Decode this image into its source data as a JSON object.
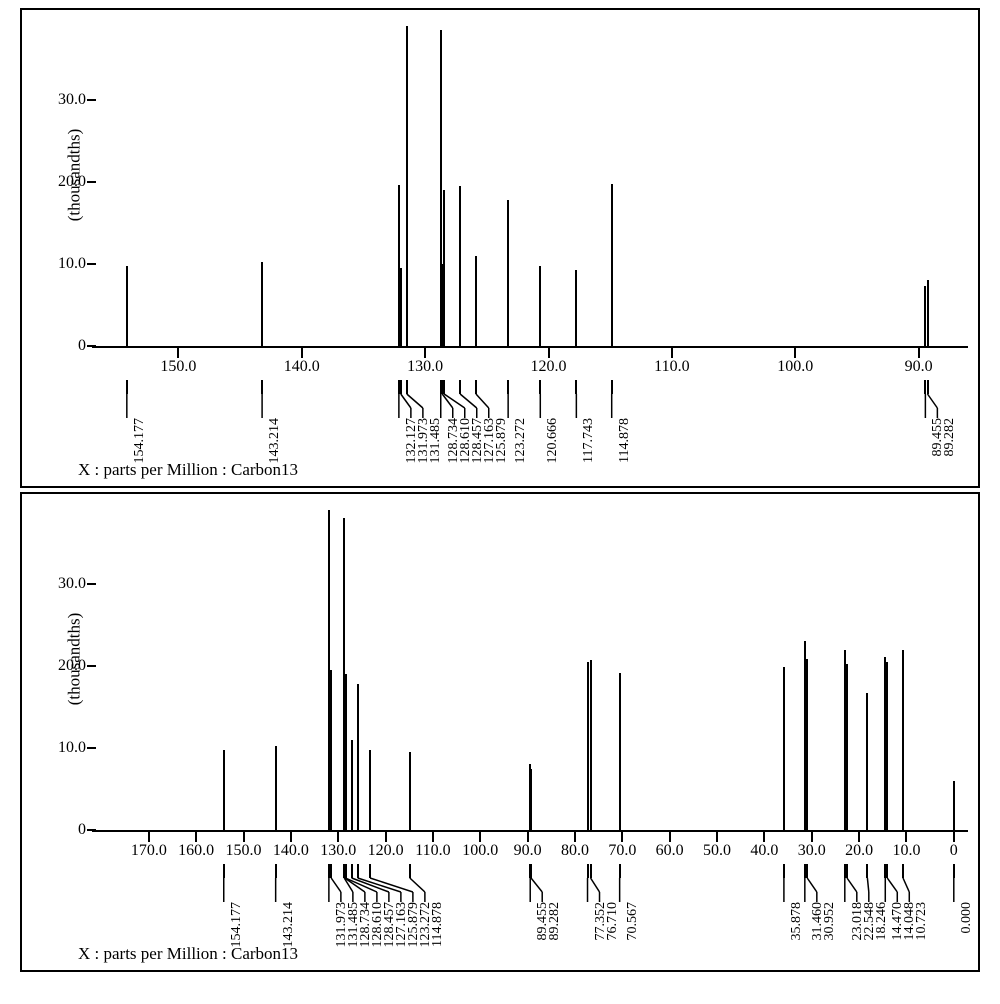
{
  "colors": {
    "background": "#ffffff",
    "stroke": "#000000",
    "peak": "#000000",
    "border": "#000000"
  },
  "labels": {
    "x_caption": "X : parts per Million : Carbon13",
    "y_label": "(thousandths)"
  },
  "typography": {
    "axis_fontsize": 16,
    "label_fontsize": 17,
    "picker_fontsize": 14,
    "family": "Times New Roman"
  },
  "top": {
    "type": "line",
    "y_ticks": [
      0,
      10.0,
      20.0,
      30.0
    ],
    "y_tick_labels": [
      "0",
      "10.0",
      "20.0",
      "30.0"
    ],
    "ylim": [
      -2,
      40
    ],
    "xlim": [
      157,
      86
    ],
    "x_ticks": [
      150.0,
      140.0,
      130.0,
      120.0,
      110.0,
      100.0,
      90.0
    ],
    "x_tick_labels": [
      "150.0",
      "140.0",
      "130.0",
      "120.0",
      "110.0",
      "100.0",
      "90.0"
    ],
    "peaks": [
      {
        "ppm": 154.177,
        "h": 9.7,
        "label": "154.177"
      },
      {
        "ppm": 143.214,
        "h": 10.3,
        "label": "143.214"
      },
      {
        "ppm": 132.127,
        "h": 19.6,
        "label": "132.127"
      },
      {
        "ppm": 131.973,
        "h": 9.5,
        "label": "131.973"
      },
      {
        "ppm": 131.485,
        "h": 39.0,
        "label": "131.485"
      },
      {
        "ppm": 128.734,
        "h": 38.5,
        "label": "128.734"
      },
      {
        "ppm": 128.61,
        "h": 10.0,
        "label": "128.610"
      },
      {
        "ppm": 128.457,
        "h": 19.0,
        "label": "128.457"
      },
      {
        "ppm": 127.163,
        "h": 19.5,
        "label": "127.163"
      },
      {
        "ppm": 125.879,
        "h": 11.0,
        "label": "125.879"
      },
      {
        "ppm": 123.272,
        "h": 17.8,
        "label": "123.272"
      },
      {
        "ppm": 120.666,
        "h": 9.7,
        "label": "120.666"
      },
      {
        "ppm": 117.743,
        "h": 9.3,
        "label": "117.743"
      },
      {
        "ppm": 114.878,
        "h": 19.7,
        "label": "114.878"
      },
      {
        "ppm": 89.455,
        "h": 7.3,
        "label": "89.455"
      },
      {
        "ppm": 89.282,
        "h": 8.0,
        "label": "89.282"
      }
    ]
  },
  "bottom": {
    "type": "line",
    "y_ticks": [
      0,
      10.0,
      20.0,
      30.0
    ],
    "y_tick_labels": [
      "0",
      "10.0",
      "20.0",
      "30.0"
    ],
    "ylim": [
      -2,
      40
    ],
    "xlim": [
      182,
      -3
    ],
    "x_ticks": [
      170.0,
      160.0,
      150.0,
      140.0,
      130.0,
      120.0,
      110.0,
      100.0,
      90.0,
      80.0,
      70.0,
      60.0,
      50.0,
      40.0,
      30.0,
      20.0,
      10.0,
      0
    ],
    "x_tick_labels": [
      "170.0",
      "160.0",
      "150.0",
      "140.0",
      "130.0",
      "120.0",
      "110.0",
      "100.0",
      "90.0",
      "80.0",
      "70.0",
      "60.0",
      "50.0",
      "40.0",
      "30.0",
      "20.0",
      "10.0",
      "0"
    ],
    "peaks": [
      {
        "ppm": 154.177,
        "h": 9.7,
        "label": "154.177"
      },
      {
        "ppm": 143.214,
        "h": 10.3,
        "label": "143.214"
      },
      {
        "ppm": 131.973,
        "h": 39.0,
        "label": "131.973"
      },
      {
        "ppm": 131.485,
        "h": 19.5,
        "label": "131.485"
      },
      {
        "ppm": 128.734,
        "h": 38.0,
        "label": "128.734"
      },
      {
        "ppm": 128.61,
        "h": 10.0,
        "label": "128.610"
      },
      {
        "ppm": 128.457,
        "h": 19.0,
        "label": "128.457"
      },
      {
        "ppm": 127.163,
        "h": 11.0,
        "label": "127.163"
      },
      {
        "ppm": 125.879,
        "h": 17.8,
        "label": "125.879"
      },
      {
        "ppm": 123.272,
        "h": 9.7,
        "label": "123.272"
      },
      {
        "ppm": 114.878,
        "h": 9.5,
        "label": "114.878"
      },
      {
        "ppm": 89.455,
        "h": 8.0,
        "label": "89.455"
      },
      {
        "ppm": 89.282,
        "h": 7.4,
        "label": "89.282"
      },
      {
        "ppm": 77.352,
        "h": 20.5,
        "label": "77.352"
      },
      {
        "ppm": 76.71,
        "h": 20.7,
        "label": "76.710"
      },
      {
        "ppm": 70.567,
        "h": 19.2,
        "label": "70.567"
      },
      {
        "ppm": 35.878,
        "h": 19.9,
        "label": "35.878"
      },
      {
        "ppm": 31.46,
        "h": 23.1,
        "label": "31.460"
      },
      {
        "ppm": 30.952,
        "h": 20.8,
        "label": "30.952"
      },
      {
        "ppm": 23.018,
        "h": 22.0,
        "label": "23.018"
      },
      {
        "ppm": 22.548,
        "h": 20.3,
        "label": "22.548"
      },
      {
        "ppm": 18.246,
        "h": 16.7,
        "label": "18.246"
      },
      {
        "ppm": 14.47,
        "h": 21.1,
        "label": "14.470"
      },
      {
        "ppm": 14.048,
        "h": 20.5,
        "label": "14.048"
      },
      {
        "ppm": 10.723,
        "h": 22.0,
        "label": "10.723"
      },
      {
        "ppm": 0.0,
        "h": 6.0,
        "label": "0.000"
      }
    ]
  }
}
